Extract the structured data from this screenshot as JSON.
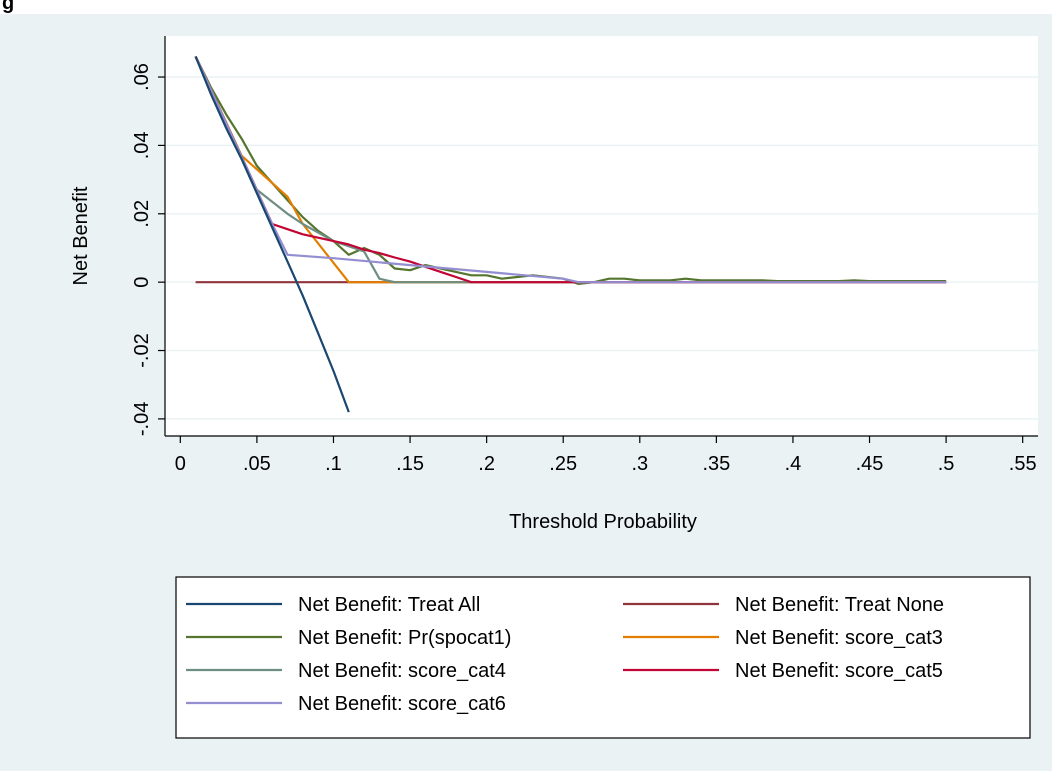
{
  "figure": {
    "caption_fragment": "g",
    "background": "#eaf2f3",
    "plot_background": "#ffffff",
    "grid": true
  },
  "chart_data": {
    "type": "line",
    "title": "",
    "xlabel": "Threshold Probability",
    "ylabel": "Net Benefit",
    "xlim": [
      -0.01,
      0.56
    ],
    "ylim": [
      -0.045,
      0.072
    ],
    "x_ticks": [
      0,
      0.05,
      0.1,
      0.15,
      0.2,
      0.25,
      0.3,
      0.35,
      0.4,
      0.45,
      0.5,
      0.55
    ],
    "x_tick_labels": [
      "0",
      ".05",
      ".1",
      ".15",
      ".2",
      ".25",
      ".3",
      ".35",
      ".4",
      ".45",
      ".5",
      ".55"
    ],
    "y_ticks": [
      -0.04,
      -0.02,
      0,
      0.02,
      0.04,
      0.06
    ],
    "y_tick_labels": [
      "-.04",
      "-.02",
      "0",
      ".02",
      ".04",
      ".06"
    ],
    "legend_position": "bottom",
    "series": [
      {
        "name": "Net Benefit: Treat All",
        "color": "#1a476f",
        "x": [
          0.01,
          0.02,
          0.03,
          0.04,
          0.05,
          0.06,
          0.07,
          0.08,
          0.09,
          0.1,
          0.11
        ],
        "y": [
          0.066,
          0.055,
          0.045,
          0.036,
          0.026,
          0.016,
          0.006,
          -0.004,
          -0.015,
          -0.026,
          -0.038
        ]
      },
      {
        "name": "Net Benefit: Treat None",
        "color": "#90353b",
        "x": [
          0.01,
          0.5
        ],
        "y": [
          0,
          0
        ]
      },
      {
        "name": "Net Benefit: Pr(spocat1)",
        "color": "#55752f",
        "x": [
          0.01,
          0.02,
          0.03,
          0.04,
          0.05,
          0.06,
          0.07,
          0.08,
          0.09,
          0.1,
          0.11,
          0.12,
          0.13,
          0.14,
          0.15,
          0.16,
          0.17,
          0.18,
          0.19,
          0.2,
          0.21,
          0.22,
          0.23,
          0.24,
          0.25,
          0.26,
          0.27,
          0.28,
          0.29,
          0.3,
          0.31,
          0.32,
          0.33,
          0.34,
          0.35,
          0.36,
          0.37,
          0.38,
          0.39,
          0.4,
          0.41,
          0.42,
          0.43,
          0.44,
          0.45,
          0.46,
          0.47,
          0.48,
          0.49,
          0.5
        ],
        "y": [
          0.066,
          0.057,
          0.049,
          0.042,
          0.034,
          0.029,
          0.024,
          0.019,
          0.015,
          0.012,
          0.008,
          0.01,
          0.008,
          0.004,
          0.0035,
          0.005,
          0.004,
          0.003,
          0.002,
          0.002,
          0.001,
          0.0015,
          0.002,
          0.0015,
          0.001,
          -0.0005,
          0.0,
          0.001,
          0.001,
          0.0005,
          0.0005,
          0.0005,
          0.001,
          0.0005,
          0.0005,
          0.0005,
          0.0005,
          0.0005,
          0.0003,
          0.0003,
          0.0003,
          0.0003,
          0.0003,
          0.0005,
          0.0003,
          0.0003,
          0.0003,
          0.0003,
          0.0003,
          0.0003
        ]
      },
      {
        "name": "Net Benefit: score_cat3",
        "color": "#e37e00",
        "x": [
          0.01,
          0.04,
          0.07,
          0.08,
          0.11,
          0.12,
          0.13,
          0.14,
          0.5
        ],
        "y": [
          0.066,
          0.037,
          0.025,
          0.017,
          0.0,
          0.0,
          0.0,
          0.0,
          0.0
        ]
      },
      {
        "name": "Net Benefit: score_cat4",
        "color": "#6e8e84",
        "x": [
          0.01,
          0.05,
          0.07,
          0.08,
          0.1,
          0.12,
          0.13,
          0.14,
          0.5
        ],
        "y": [
          0.066,
          0.027,
          0.02,
          0.017,
          0.012,
          0.009,
          0.001,
          0.0,
          0.0
        ]
      },
      {
        "name": "Net Benefit: score_cat5",
        "color": "#c10534",
        "x": [
          0.01,
          0.06,
          0.07,
          0.08,
          0.09,
          0.1,
          0.11,
          0.12,
          0.13,
          0.14,
          0.15,
          0.16,
          0.17,
          0.18,
          0.19,
          0.2,
          0.5
        ],
        "y": [
          0.066,
          0.017,
          0.0155,
          0.014,
          0.013,
          0.012,
          0.011,
          0.0095,
          0.0085,
          0.0072,
          0.006,
          0.0045,
          0.003,
          0.0015,
          0.0,
          0.0,
          0.0
        ]
      },
      {
        "name": "Net Benefit: score_cat6",
        "color": "#938dd2",
        "x": [
          0.01,
          0.06,
          0.07,
          0.1,
          0.15,
          0.2,
          0.25,
          0.26,
          0.5
        ],
        "y": [
          0.066,
          0.017,
          0.008,
          0.007,
          0.005,
          0.003,
          0.001,
          0.0,
          0.0
        ]
      }
    ]
  },
  "legend": {
    "items": [
      "Net Benefit: Treat All",
      "Net Benefit: Treat None",
      "Net Benefit: Pr(spocat1)",
      "Net Benefit: score_cat3",
      "Net Benefit: score_cat4",
      "Net Benefit: score_cat5",
      "Net Benefit: score_cat6"
    ]
  }
}
